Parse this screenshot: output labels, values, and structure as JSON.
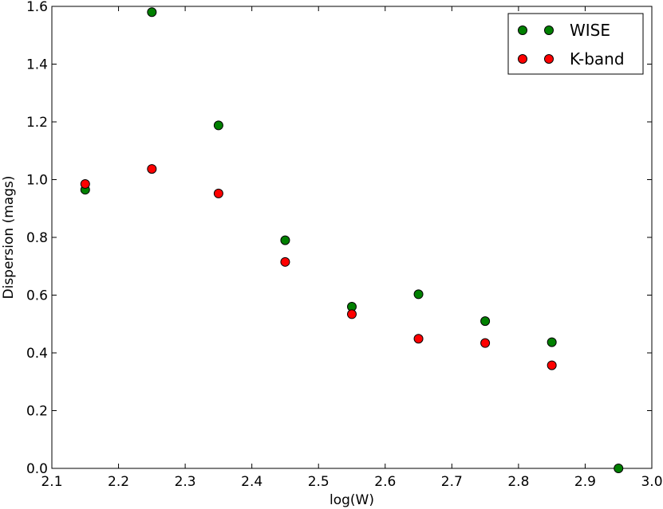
{
  "chart_data": {
    "type": "scatter",
    "xlabel": "log(W)",
    "ylabel": "Dispersion (mags)",
    "xlim": [
      2.1,
      3.0
    ],
    "ylim": [
      0.0,
      1.6
    ],
    "xticks": [
      "2.1",
      "2.2",
      "2.3",
      "2.4",
      "2.5",
      "2.6",
      "2.7",
      "2.8",
      "2.9",
      "3.0"
    ],
    "yticks": [
      "0.0",
      "0.2",
      "0.4",
      "0.6",
      "0.8",
      "1.0",
      "1.2",
      "1.4",
      "1.6"
    ],
    "grid": false,
    "legend_position": "top-right",
    "series": [
      {
        "name": "WISE",
        "color": "#008000",
        "x": [
          2.15,
          2.25,
          2.35,
          2.45,
          2.55,
          2.65,
          2.75,
          2.85,
          2.95
        ],
        "y": [
          0.965,
          1.58,
          1.188,
          0.79,
          0.56,
          0.603,
          0.51,
          0.437,
          0.0
        ]
      },
      {
        "name": "K-band",
        "color": "#ff0000",
        "x": [
          2.15,
          2.25,
          2.35,
          2.45,
          2.55,
          2.65,
          2.75,
          2.85
        ],
        "y": [
          0.985,
          1.037,
          0.952,
          0.715,
          0.534,
          0.449,
          0.434,
          0.357
        ]
      }
    ]
  }
}
